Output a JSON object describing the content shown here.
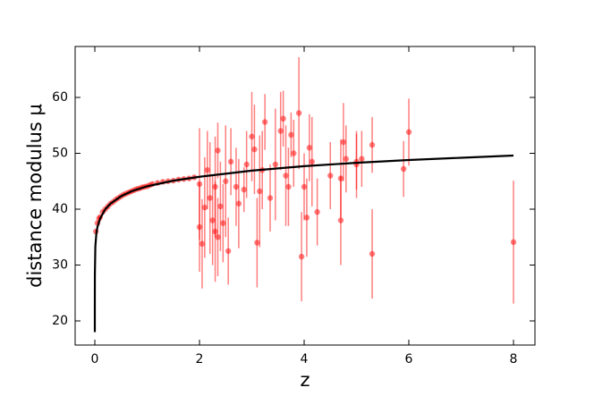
{
  "chart_data": {
    "type": "scatter",
    "xlabel": "z",
    "ylabel": "distance  modulus  μ",
    "xlim": [
      -0.376,
      8.41
    ],
    "ylim": [
      15.68,
      69.12
    ],
    "xticks": [
      0,
      2,
      4,
      6,
      8
    ],
    "yticks": [
      20,
      30,
      40,
      50,
      60
    ],
    "tick_direction": "in",
    "ticks_all_sides": true,
    "series": [
      {
        "type": "line",
        "color": "#000000",
        "x": [
          1e-05,
          0.0001,
          0.001,
          0.01,
          0.03,
          0.05,
          0.1,
          0.2,
          0.3,
          0.5,
          0.7,
          1,
          1.5,
          2,
          3,
          4,
          5,
          6,
          7,
          8
        ],
        "values": [
          18,
          23.2,
          28.3,
          33.3,
          35.7,
          36.8,
          38.3,
          40.0,
          41.0,
          42.3,
          43.2,
          44.1,
          45.1,
          45.8,
          46.9,
          47.7,
          48.3,
          48.8,
          49.2,
          49.6
        ]
      },
      {
        "type": "errorbar",
        "color": "#ff0000",
        "opacity": 0.5,
        "x": [
          0.02,
          0.05,
          0.08,
          0.1,
          0.15,
          0.2,
          0.25,
          0.3,
          0.35,
          0.4,
          0.45,
          0.5,
          0.55,
          0.6,
          0.65,
          0.7,
          0.75,
          0.8,
          0.85,
          0.9,
          0.95,
          1.0,
          1.05,
          1.1,
          1.2,
          1.3,
          1.4,
          1.5,
          1.6,
          1.7,
          1.8,
          1.9,
          2.0,
          2.0,
          2.05,
          2.1,
          2.15,
          2.2,
          2.25,
          2.3,
          2.3,
          2.35,
          2.35,
          2.4,
          2.45,
          2.5,
          2.55,
          2.6,
          2.7,
          2.75,
          2.85,
          2.9,
          3.0,
          3.05,
          3.1,
          3.15,
          3.2,
          3.25,
          3.35,
          3.45,
          3.55,
          3.6,
          3.65,
          3.7,
          3.75,
          3.8,
          3.9,
          3.95,
          4.0,
          4.05,
          4.1,
          4.15,
          4.25,
          4.5,
          4.7,
          4.7,
          4.75,
          4.8,
          5.0,
          5.0,
          5.1,
          5.3,
          5.3,
          5.9,
          6.0,
          8.0
        ],
        "values": [
          36,
          37.5,
          38.3,
          38.6,
          39.5,
          40,
          40.5,
          41,
          41.3,
          41.7,
          42,
          42.3,
          42.6,
          42.8,
          43,
          43.2,
          43.4,
          43.6,
          43.7,
          43.9,
          44,
          44.1,
          44.3,
          44.5,
          44.7,
          44.9,
          45,
          45.1,
          45.3,
          45.4,
          45.5,
          45.7,
          36.8,
          44.5,
          33.8,
          40.3,
          47,
          42,
          38,
          44,
          36,
          35,
          50.5,
          40.5,
          37.5,
          45,
          32.5,
          48.5,
          44,
          41,
          43.5,
          48,
          53,
          50.7,
          34,
          43.2,
          47,
          55.6,
          42,
          48,
          54,
          56.2,
          46,
          44,
          53.3,
          50,
          57.2,
          31.5,
          44,
          38.5,
          51,
          48.5,
          39.5,
          46,
          38,
          45.5,
          52,
          49,
          48.5,
          48,
          49,
          51.5,
          32,
          47.2,
          53.8,
          34.1
        ],
        "errors": [
          0.3,
          0.3,
          0.3,
          0.3,
          0.3,
          0.3,
          0.3,
          0.3,
          0.3,
          0.3,
          0.3,
          0.3,
          0.3,
          0.3,
          0.3,
          0.3,
          0.3,
          0.3,
          0.3,
          0.3,
          0.3,
          0.3,
          0.3,
          0.3,
          0.3,
          0.3,
          0.3,
          0.3,
          0.3,
          0.3,
          0.3,
          0.3,
          8,
          10,
          8,
          9,
          7,
          10,
          8,
          9,
          9,
          7,
          5,
          8,
          7,
          10,
          6,
          6,
          7,
          8,
          4,
          6,
          8,
          8,
          8,
          10,
          7,
          5,
          6,
          10,
          7,
          5,
          9,
          7,
          4,
          6,
          10,
          8,
          6,
          7,
          6,
          8,
          6,
          6,
          8,
          7,
          7,
          6,
          5,
          6,
          5,
          5,
          8,
          5,
          6,
          11
        ]
      }
    ]
  }
}
